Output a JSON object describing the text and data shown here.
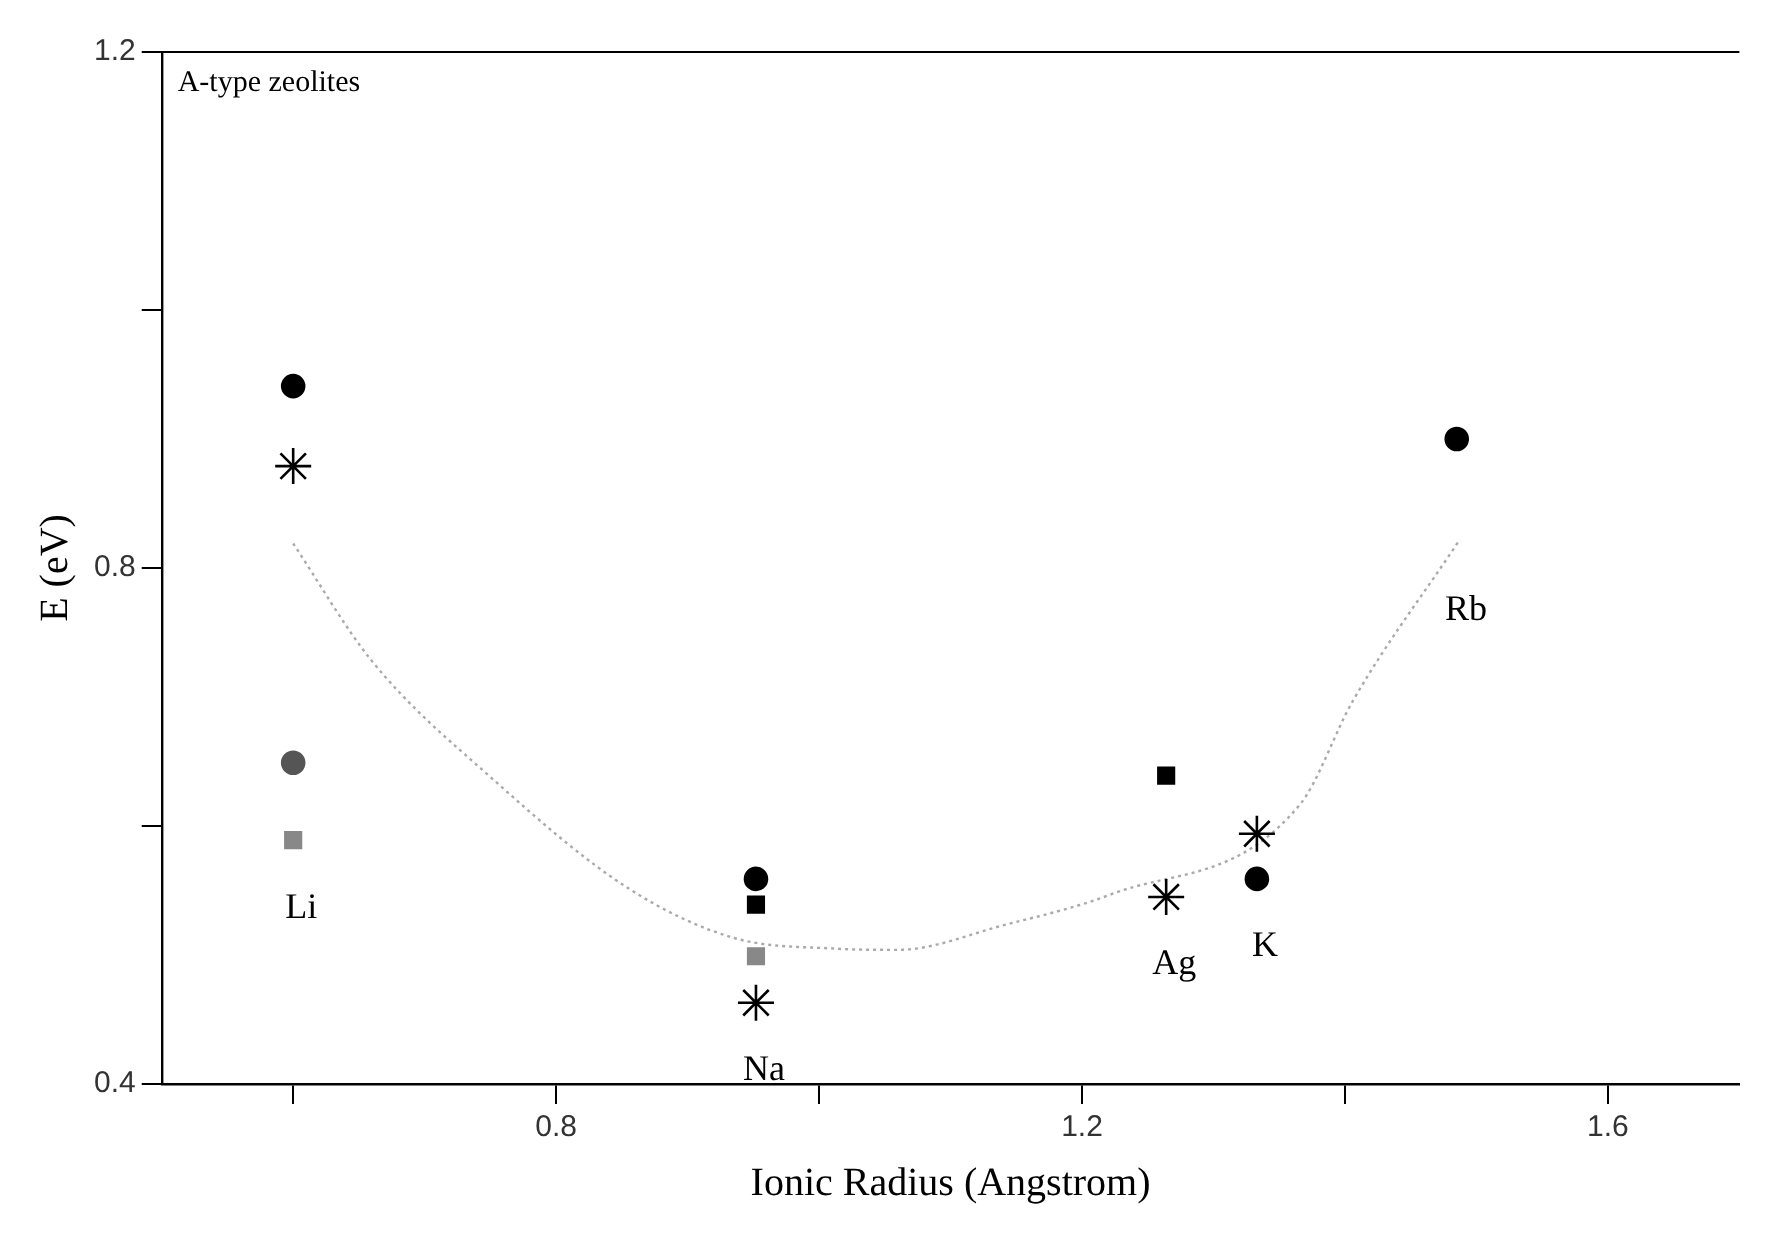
{
  "chart_data": {
    "type": "scatter",
    "title": "A-type zeolites",
    "xlabel": "Ionic Radius (Angstrom)",
    "ylabel": "E (eV)",
    "xlim": [
      0.5,
      1.7
    ],
    "xticks": [
      {
        "value": 0.6,
        "label": null
      },
      0.8,
      {
        "value": 1.0,
        "label": null
      },
      1.2,
      {
        "value": 1.4,
        "label": null
      },
      1.6
    ],
    "ylim": [
      0.4,
      1.2
    ],
    "yticks": [
      0.4,
      {
        "value": 0.6,
        "label": null
      },
      0.8,
      {
        "value": 1.0,
        "label": null
      },
      1.2
    ],
    "grid": false,
    "legend": false,
    "series": [
      {
        "marker": "circle",
        "color": "#000000",
        "x": [
          0.6,
          0.952,
          1.333,
          1.485
        ],
        "values": [
          0.941,
          0.559,
          0.559,
          0.9
        ]
      },
      {
        "marker": "circle",
        "color": "#555555",
        "x": [
          0.6
        ],
        "values": [
          0.649
        ]
      },
      {
        "marker": "square",
        "color": "#000000",
        "x": [
          0.952,
          1.264
        ],
        "values": [
          0.539,
          0.639
        ]
      },
      {
        "marker": "square",
        "color": "#888888",
        "x": [
          0.6,
          0.952
        ],
        "values": [
          0.589,
          0.499
        ]
      },
      {
        "marker": "cross",
        "color": "#000000",
        "x": [
          0.6,
          0.952,
          1.264,
          1.333
        ],
        "values": [
          0.879,
          0.463,
          0.545,
          0.594
        ]
      },
      {
        "type": "line",
        "marker": "none",
        "line_style": "dotted",
        "color": "#aaaaaa",
        "x": [
          0.6,
          0.659,
          0.75,
          0.856,
          0.936,
          1.011,
          1.06,
          1.14,
          1.222,
          1.366,
          1.406,
          1.486
        ],
        "values": [
          0.819,
          0.729,
          0.638,
          0.551,
          0.513,
          0.505,
          0.504,
          0.523,
          0.547,
          0.617,
          0.697,
          0.82
        ]
      }
    ],
    "annotations": [
      {
        "text": "Li",
        "x": 0.6,
        "y": 0.589
      },
      {
        "text": "Na",
        "x": 0.952,
        "y": 0.463
      },
      {
        "text": "Ag",
        "x": 1.264,
        "y": 0.545
      },
      {
        "text": "K",
        "x": 1.333,
        "y": 0.559
      },
      {
        "text": "Rb",
        "x": 1.486,
        "y": 0.82
      }
    ]
  }
}
